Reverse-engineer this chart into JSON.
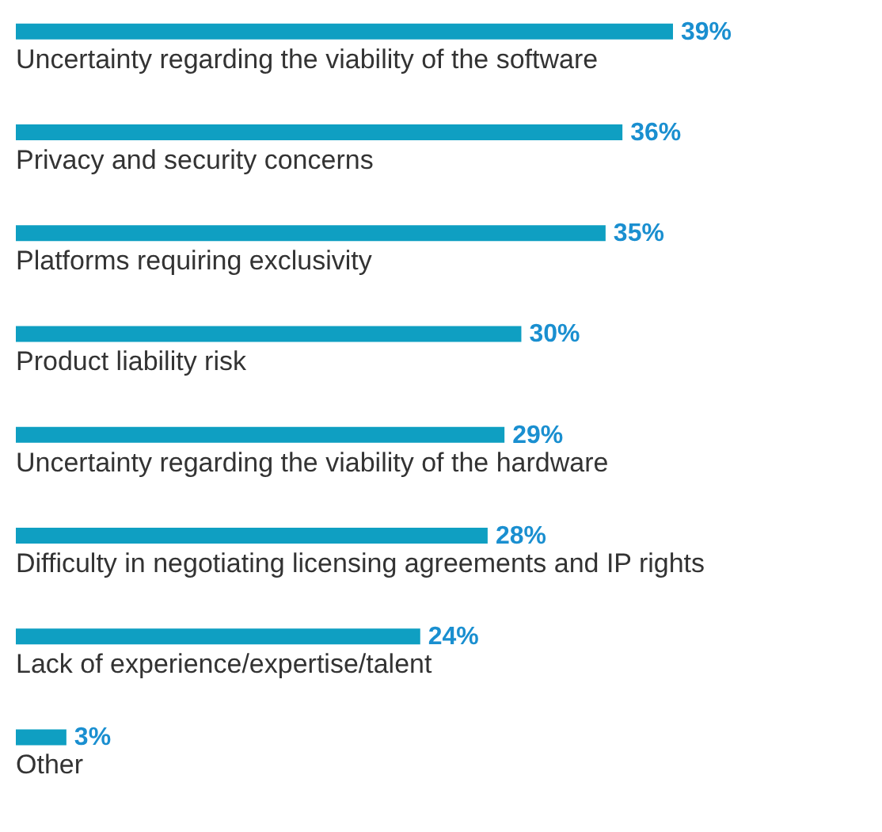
{
  "chart_data": {
    "type": "bar",
    "orientation": "horizontal",
    "color": "#0f9fc2",
    "categories": [
      "Uncertainty regarding the viability of the software",
      "Privacy and security concerns",
      "Platforms requiring exclusivity",
      "Product liability risk",
      "Uncertainty regarding the viability of the hardware",
      "Difficulty in negotiating licensing agreements and IP rights",
      "Lack of experience/expertise/talent",
      "Other"
    ],
    "values": [
      39,
      36,
      35,
      30,
      29,
      28,
      24,
      3
    ],
    "value_labels": [
      "39%",
      "36%",
      "35%",
      "30%",
      "29%",
      "28%",
      "24%",
      "3%"
    ]
  }
}
